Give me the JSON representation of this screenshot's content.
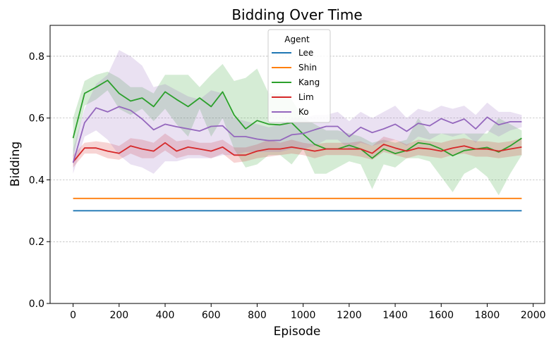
{
  "chart_data": {
    "type": "line",
    "title": "Bidding Over Time",
    "xlabel": "Episode",
    "ylabel": "Bidding",
    "xlim": [
      -100,
      2050
    ],
    "ylim": [
      0,
      0.9
    ],
    "xticks": [
      0,
      200,
      400,
      600,
      800,
      1000,
      1200,
      1400,
      1600,
      1800,
      2000
    ],
    "yticks": [
      0.0,
      0.2,
      0.4,
      0.6,
      0.8
    ],
    "xtick_labels": [
      "0",
      "200",
      "400",
      "600",
      "800",
      "1000",
      "1200",
      "1400",
      "1600",
      "1800",
      "2000"
    ],
    "ytick_labels": [
      "0.0",
      "0.2",
      "0.4",
      "0.6",
      "0.8"
    ],
    "grid": "horizontal dashed",
    "legend": {
      "title": "Agent",
      "position": "top-center"
    },
    "x": [
      0,
      50,
      100,
      150,
      200,
      250,
      300,
      350,
      400,
      450,
      500,
      550,
      600,
      650,
      700,
      750,
      800,
      850,
      900,
      950,
      1000,
      1050,
      1100,
      1150,
      1200,
      1250,
      1300,
      1350,
      1400,
      1450,
      1500,
      1550,
      1600,
      1650,
      1700,
      1750,
      1800,
      1850,
      1900,
      1950
    ],
    "series": [
      {
        "name": "Lee",
        "color": "#1f77b4",
        "values": [
          0.3,
          0.3,
          0.3,
          0.3,
          0.3,
          0.3,
          0.3,
          0.3,
          0.3,
          0.3,
          0.3,
          0.3,
          0.3,
          0.3,
          0.3,
          0.3,
          0.3,
          0.3,
          0.3,
          0.3,
          0.3,
          0.3,
          0.3,
          0.3,
          0.3,
          0.3,
          0.3,
          0.3,
          0.3,
          0.3,
          0.3,
          0.3,
          0.3,
          0.3,
          0.3,
          0.3,
          0.3,
          0.3,
          0.3,
          0.3
        ]
      },
      {
        "name": "Shin",
        "color": "#ff7f0e",
        "values": [
          0.34,
          0.34,
          0.34,
          0.34,
          0.34,
          0.34,
          0.34,
          0.34,
          0.34,
          0.34,
          0.34,
          0.34,
          0.34,
          0.34,
          0.34,
          0.34,
          0.34,
          0.34,
          0.34,
          0.34,
          0.34,
          0.34,
          0.34,
          0.34,
          0.34,
          0.34,
          0.34,
          0.34,
          0.34,
          0.34,
          0.34,
          0.34,
          0.34,
          0.34,
          0.34,
          0.34,
          0.34,
          0.34,
          0.34,
          0.34
        ]
      },
      {
        "name": "Kang",
        "color": "#2ca02c",
        "values": [
          0.535,
          0.68,
          0.7,
          0.722,
          0.68,
          0.655,
          0.665,
          0.637,
          0.685,
          0.66,
          0.637,
          0.665,
          0.637,
          0.685,
          0.61,
          0.565,
          0.592,
          0.58,
          0.578,
          0.585,
          0.548,
          0.515,
          0.5,
          0.5,
          0.512,
          0.5,
          0.47,
          0.5,
          0.485,
          0.495,
          0.52,
          0.515,
          0.5,
          0.478,
          0.495,
          0.5,
          0.505,
          0.49,
          0.51,
          0.535
        ],
        "upper": [
          0.6,
          0.72,
          0.74,
          0.75,
          0.73,
          0.7,
          0.7,
          0.68,
          0.74,
          0.74,
          0.74,
          0.7,
          0.74,
          0.775,
          0.72,
          0.73,
          0.76,
          0.68,
          0.68,
          0.66,
          0.6,
          0.58,
          0.56,
          0.56,
          0.55,
          0.54,
          0.52,
          0.53,
          0.52,
          0.53,
          0.6,
          0.55,
          0.55,
          0.55,
          0.55,
          0.55,
          0.55,
          0.6,
          0.58,
          0.56
        ],
        "lower": [
          0.47,
          0.64,
          0.66,
          0.69,
          0.63,
          0.61,
          0.63,
          0.59,
          0.63,
          0.58,
          0.54,
          0.63,
          0.54,
          0.6,
          0.5,
          0.44,
          0.45,
          0.48,
          0.48,
          0.45,
          0.5,
          0.42,
          0.42,
          0.44,
          0.46,
          0.45,
          0.37,
          0.45,
          0.44,
          0.47,
          0.47,
          0.46,
          0.41,
          0.36,
          0.42,
          0.44,
          0.41,
          0.35,
          0.42,
          0.48
        ]
      },
      {
        "name": "Lim",
        "color": "#d62728",
        "values": [
          0.458,
          0.503,
          0.503,
          0.493,
          0.486,
          0.51,
          0.5,
          0.493,
          0.52,
          0.493,
          0.506,
          0.5,
          0.493,
          0.506,
          0.48,
          0.48,
          0.493,
          0.5,
          0.5,
          0.506,
          0.5,
          0.493,
          0.5,
          0.5,
          0.5,
          0.5,
          0.486,
          0.515,
          0.503,
          0.493,
          0.503,
          0.5,
          0.493,
          0.503,
          0.51,
          0.5,
          0.5,
          0.493,
          0.5,
          0.506
        ],
        "upper": [
          0.48,
          0.52,
          0.525,
          0.52,
          0.51,
          0.535,
          0.53,
          0.52,
          0.55,
          0.525,
          0.53,
          0.52,
          0.52,
          0.53,
          0.505,
          0.505,
          0.515,
          0.53,
          0.52,
          0.53,
          0.52,
          0.515,
          0.52,
          0.52,
          0.52,
          0.525,
          0.51,
          0.54,
          0.53,
          0.515,
          0.53,
          0.525,
          0.52,
          0.53,
          0.535,
          0.525,
          0.525,
          0.52,
          0.525,
          0.535
        ],
        "lower": [
          0.44,
          0.485,
          0.485,
          0.47,
          0.465,
          0.485,
          0.47,
          0.47,
          0.495,
          0.47,
          0.48,
          0.48,
          0.47,
          0.485,
          0.455,
          0.46,
          0.47,
          0.475,
          0.48,
          0.485,
          0.48,
          0.47,
          0.48,
          0.48,
          0.48,
          0.475,
          0.465,
          0.49,
          0.48,
          0.47,
          0.48,
          0.475,
          0.47,
          0.48,
          0.485,
          0.475,
          0.475,
          0.47,
          0.475,
          0.48
        ]
      },
      {
        "name": "Ko",
        "color": "#9467bd",
        "values": [
          0.455,
          0.585,
          0.633,
          0.62,
          0.637,
          0.625,
          0.597,
          0.562,
          0.58,
          0.572,
          0.565,
          0.558,
          0.573,
          0.575,
          0.54,
          0.54,
          0.532,
          0.527,
          0.528,
          0.546,
          0.55,
          0.562,
          0.573,
          0.573,
          0.54,
          0.57,
          0.553,
          0.565,
          0.58,
          0.557,
          0.583,
          0.575,
          0.598,
          0.583,
          0.597,
          0.565,
          0.603,
          0.578,
          0.588,
          0.588
        ],
        "upper": [
          0.5,
          0.63,
          0.71,
          0.74,
          0.82,
          0.8,
          0.77,
          0.7,
          0.71,
          0.69,
          0.67,
          0.66,
          0.69,
          0.68,
          0.6,
          0.59,
          0.58,
          0.57,
          0.58,
          0.6,
          0.6,
          0.61,
          0.61,
          0.62,
          0.59,
          0.62,
          0.6,
          0.62,
          0.64,
          0.6,
          0.63,
          0.62,
          0.64,
          0.63,
          0.64,
          0.61,
          0.65,
          0.62,
          0.62,
          0.61
        ],
        "lower": [
          0.42,
          0.54,
          0.56,
          0.53,
          0.48,
          0.45,
          0.44,
          0.42,
          0.46,
          0.46,
          0.47,
          0.47,
          0.47,
          0.48,
          0.48,
          0.49,
          0.49,
          0.49,
          0.49,
          0.5,
          0.5,
          0.51,
          0.53,
          0.53,
          0.5,
          0.52,
          0.51,
          0.52,
          0.53,
          0.51,
          0.54,
          0.53,
          0.55,
          0.54,
          0.55,
          0.52,
          0.56,
          0.54,
          0.56,
          0.57
        ]
      }
    ]
  }
}
